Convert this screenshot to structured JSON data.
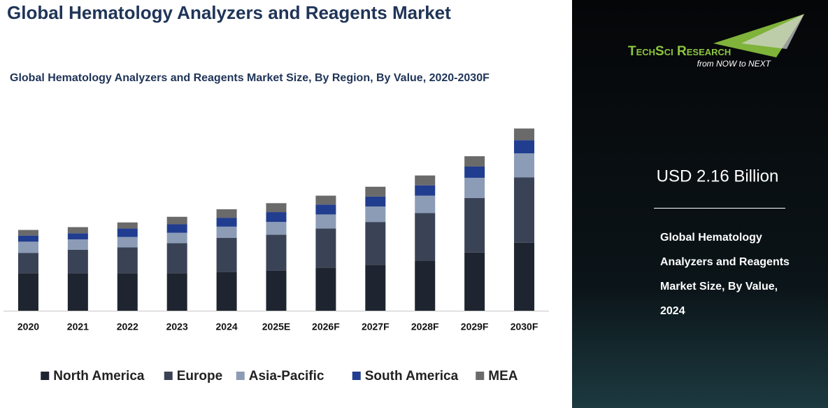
{
  "chart_data": {
    "type": "stacked-bar",
    "title": "Global Hematology Analyzers and Reagents Market",
    "subtitle": "Global Hematology Analyzers and Reagents Market Size, By Region, By Value, 2020-2030F",
    "categories": [
      "2020",
      "2021",
      "2022",
      "2023",
      "2024",
      "2025E",
      "2026F",
      "2027F",
      "2028F",
      "2029F",
      "2030F"
    ],
    "series": [
      {
        "name": "North America",
        "color": "#1f2530",
        "values": [
          0.8,
          0.79,
          0.8,
          0.8,
          0.82,
          0.85,
          0.92,
          0.98,
          1.07,
          1.24,
          1.45
        ]
      },
      {
        "name": "Europe",
        "color": "#3a4356",
        "values": [
          0.43,
          0.51,
          0.55,
          0.64,
          0.73,
          0.77,
          0.83,
          0.91,
          1.01,
          1.16,
          1.39
        ]
      },
      {
        "name": "Asia-Pacific",
        "color": "#8c9cb6",
        "values": [
          0.24,
          0.22,
          0.22,
          0.22,
          0.24,
          0.27,
          0.3,
          0.33,
          0.37,
          0.43,
          0.51
        ]
      },
      {
        "name": "South America",
        "color": "#213d8f",
        "values": [
          0.13,
          0.13,
          0.18,
          0.18,
          0.19,
          0.21,
          0.21,
          0.21,
          0.22,
          0.24,
          0.28
        ]
      },
      {
        "name": "MEA",
        "color": "#6a6a6a",
        "values": [
          0.12,
          0.13,
          0.13,
          0.16,
          0.18,
          0.19,
          0.19,
          0.21,
          0.21,
          0.22,
          0.25
        ]
      }
    ],
    "ylim": [
      0,
      4.5
    ]
  },
  "side_panel": {
    "logo_name": "TechSci Research",
    "logo_tagline": "from NOW to NEXT",
    "headline": "USD 2.16 Billion",
    "description": "Global Hematology Analyzers and Reagents Market Size, By Value, 2024"
  }
}
